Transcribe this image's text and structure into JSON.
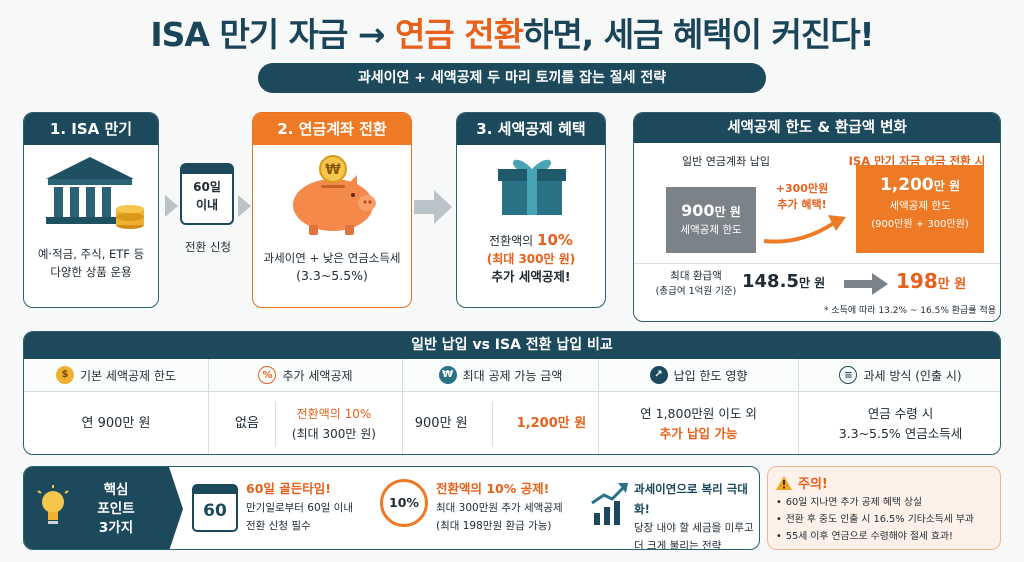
{
  "header": {
    "title_a": "ISA 만기 자금 → ",
    "title_hl": "연금 전환",
    "title_b": "하면, 세금 혜택이 커진다!",
    "subtitle": "과세이연 + 세액공제 두 마리 토끼를 잡는 절세 전략"
  },
  "steps": {
    "s1": {
      "title": "1. ISA 만기",
      "desc1": "예·적금, 주식, ETF 등",
      "desc2": "다양한 상품 운용"
    },
    "cal": {
      "line1": "60일",
      "line2": "이내",
      "label": "전환 신청"
    },
    "s2": {
      "title": "2. 연금계좌 전환",
      "coin": "₩",
      "desc1": "과세이연 + 낮은 연금소득세",
      "desc2": "(3.3~5.5%)"
    },
    "s3": {
      "title": "3. 세액공제 혜택",
      "l1a": "전환액의 ",
      "l1b": "10%",
      "l2": "(최대 300만 원)",
      "l3": "추가 세액공제!"
    }
  },
  "panel": {
    "title": "세액공제 한도 & 환급액 변화",
    "left_label": "일반 연금계좌 납입",
    "right_label": "ISA 만기 자금 연금 전환 시",
    "bar1_value": "900",
    "bar1_unit": "만 원",
    "bar1_sub": "세액공제 한도",
    "bonus1": "+300만원",
    "bonus2": "추가 혜택!",
    "bar2_value": "1,200",
    "bar2_unit": "만 원",
    "bar2_sub1": "세액공제 한도",
    "bar2_sub2": "(900만원 + 300만원)",
    "refund_label1": "최대 환급액",
    "refund_label2": "(총급여 1억원 기준)",
    "refund_from": "148.5",
    "refund_from_unit": "만 원",
    "refund_to": "198",
    "refund_to_unit": "만 원",
    "note": "* 소득에 따라 13.2% ~ 16.5% 환급률 적용",
    "bar1_level": 900,
    "bar2_level": 1200
  },
  "compare": {
    "title": "일반 납입 vs ISA 전환 납입 비교",
    "cols": [
      {
        "head": "기본 세액공제 한도",
        "v1": "연 900만 원"
      },
      {
        "head": "추가 세액공제",
        "v1": "없음",
        "v2a": "전환액의 10%",
        "v2b": "(최대 300만 원)"
      },
      {
        "head": "최대 공제 가능 금액",
        "v1": "900만 원",
        "v2": "1,200만 원"
      },
      {
        "head": "납입 한도 영향",
        "v1": "연 1,800만원 이도 외",
        "v2": "추가 납입 가능"
      },
      {
        "head": "과세 방식 (인출 시)",
        "v1": "연금 수령 시",
        "v2": "3.3~5.5% 연금소득세"
      }
    ]
  },
  "points": {
    "core1": "핵심",
    "core2": "포인트",
    "core3": "3가지",
    "p1_icon": "60",
    "p1_title": "60일 골든타임!",
    "p1_l1": "만기일로부터 60일 이내",
    "p1_l2": "전환 신청 필수",
    "p2_icon": "10%",
    "p2_title": "전환액의 10% 공제!",
    "p2_l1": "최대 300만원 추가 세액공제",
    "p2_l2": "(최대 198만원 환급 가능)",
    "p3_title": "과세이연으로 복리 극대화!",
    "p3_l1": "당장 내야 할 세금을 미루고",
    "p3_l2": "더 크게 불리는 전략"
  },
  "warning": {
    "title": "주의!",
    "items": [
      "60일 지나면 추가 공제 혜택 상실",
      "전환 후 중도 인출 시 16.5% 기타소득세 부과",
      "55세 이후 연금으로 수령해야 절세 효과!"
    ]
  },
  "colors": {
    "teal": "#1c4a5c",
    "orange": "#ee7a26",
    "gray_bar": "#7b8288"
  },
  "icons": [
    "bank-icon",
    "coins-icon",
    "calendar-icon",
    "piggy-bank-icon",
    "gift-icon",
    "curved-arrow-icon",
    "lightbulb-icon",
    "chart-up-icon",
    "warning-icon"
  ]
}
